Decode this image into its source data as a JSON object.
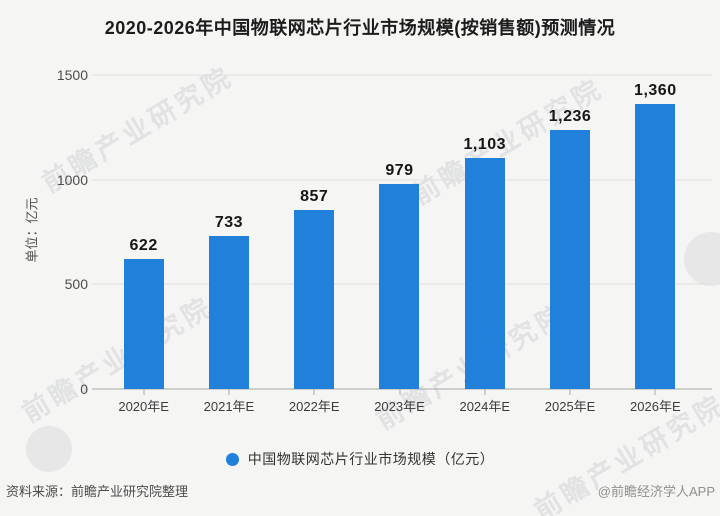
{
  "title": "2020-2026年中国物联网芯片行业市场规模(按销售额)预测情况",
  "y_axis": {
    "unit_label": "单位：亿元",
    "ticks": [
      0,
      500,
      1000,
      1500
    ]
  },
  "chart_data": {
    "type": "bar",
    "title": "2020-2026年中国物联网芯片行业市场规模(按销售额)预测情况",
    "categories": [
      "2020年E",
      "2021年E",
      "2022年E",
      "2023年E",
      "2024年E",
      "2025年E",
      "2026年E"
    ],
    "values": [
      622,
      733,
      857,
      979,
      1103,
      1236,
      1360
    ],
    "value_labels": [
      "622",
      "733",
      "857",
      "979",
      "1,103",
      "1,236",
      "1,360"
    ],
    "xlabel": "",
    "ylabel": "单位：亿元",
    "ylim": [
      0,
      1500
    ],
    "yticks": [
      0,
      500,
      1000,
      1500
    ],
    "grid": true,
    "legend_position": "bottom",
    "bar_color": "#2181da"
  },
  "legend": {
    "label": "中国物联网芯片行业市场规模（亿元）",
    "marker_color": "#2181da"
  },
  "footer": {
    "source": "资料来源：前瞻产业研究院整理",
    "credit": "@前瞻经济学人APP"
  },
  "watermark": {
    "text": "前瞻产业研究院"
  },
  "colors": {
    "background": "#f5f5f3",
    "bar": "#2181da",
    "gridline": "#dedede",
    "axis": "#a8a8a8",
    "title_text": "#1c1c1c",
    "value_text": "#161616",
    "tick_text": "#4d4d4d",
    "footer_source_text": "#4c4c4c",
    "footer_credit_text": "#8f8f8f"
  }
}
